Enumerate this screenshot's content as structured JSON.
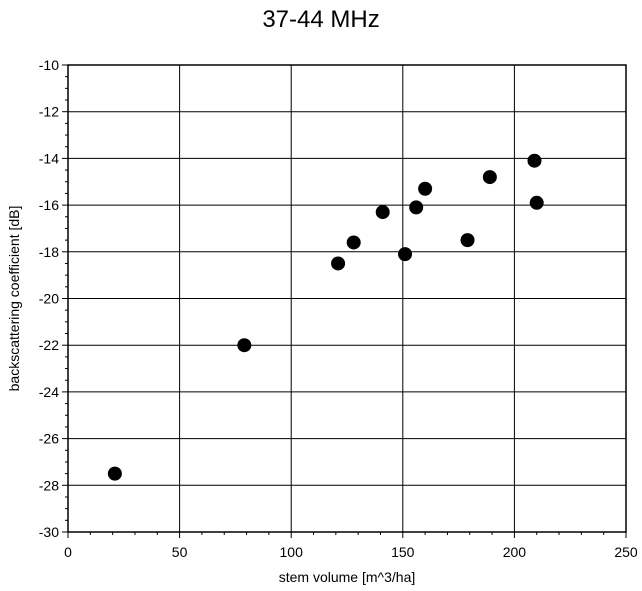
{
  "chart_data": {
    "type": "scatter",
    "title": "37-44 MHz",
    "xlabel": "stem volume [m^3/ha]",
    "ylabel": "backscattering coefficient [dB]",
    "xlim": [
      0,
      250
    ],
    "ylim": [
      -30,
      -10
    ],
    "xticks": [
      0,
      50,
      100,
      150,
      200,
      250
    ],
    "yticks": [
      -30,
      -28,
      -26,
      -24,
      -22,
      -20,
      -18,
      -16,
      -14,
      -12,
      -10
    ],
    "grid": true,
    "marker_color": "#000000",
    "points": [
      {
        "x": 21,
        "y": -27.5
      },
      {
        "x": 79,
        "y": -22.0
      },
      {
        "x": 121,
        "y": -18.5
      },
      {
        "x": 128,
        "y": -17.6
      },
      {
        "x": 141,
        "y": -16.3
      },
      {
        "x": 151,
        "y": -18.1
      },
      {
        "x": 156,
        "y": -16.1
      },
      {
        "x": 160,
        "y": -15.3
      },
      {
        "x": 179,
        "y": -17.5
      },
      {
        "x": 189,
        "y": -14.8
      },
      {
        "x": 209,
        "y": -14.1
      },
      {
        "x": 210,
        "y": -15.9
      }
    ]
  }
}
